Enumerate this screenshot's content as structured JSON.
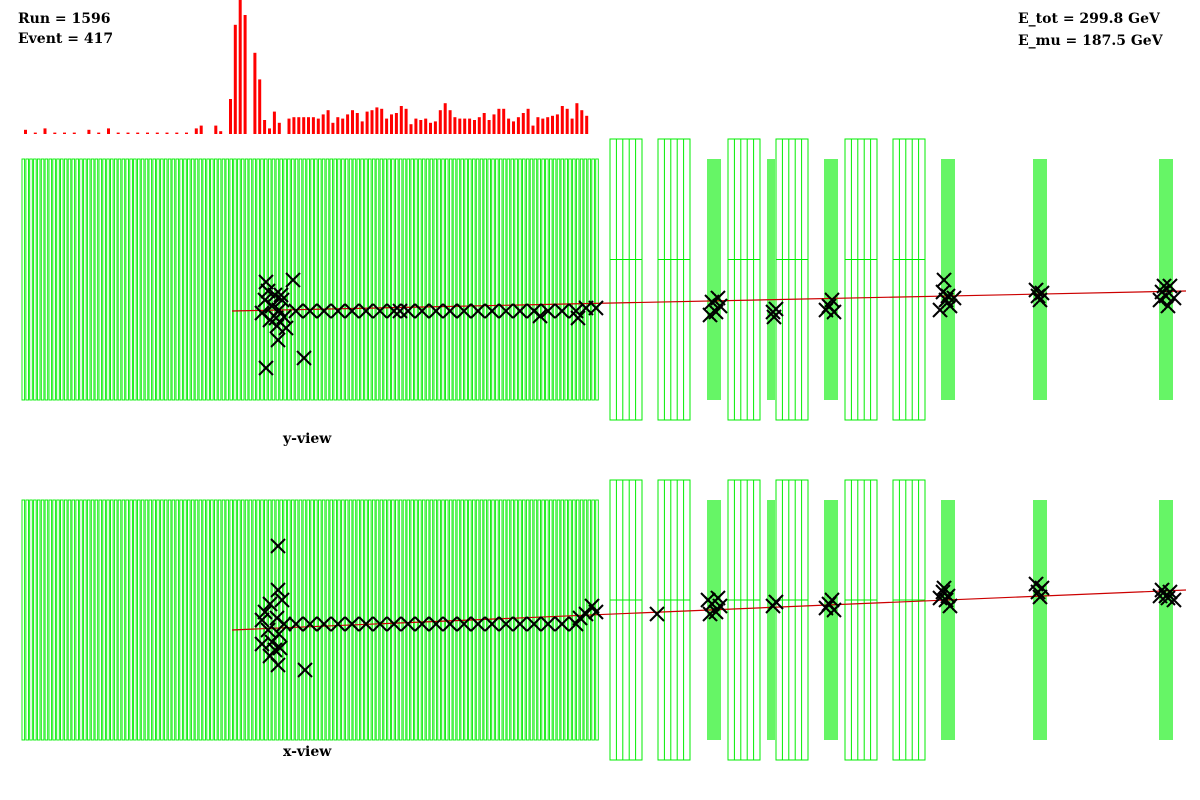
{
  "run_info": {
    "run": "Run = 1596",
    "event": "Event = 417"
  },
  "energy_info": {
    "e_tot": "E_tot = 299.8 GeV",
    "e_mu": "E_mu = 187.5 GeV"
  },
  "views": {
    "top_label": "y-view",
    "bottom_label": "x-view"
  },
  "colors": {
    "detector": "#00ee00",
    "histogram": "#ff0000",
    "track": "#cc0000",
    "hits": "#000000"
  },
  "energy_histogram": {
    "values": [
      3,
      0,
      1,
      0,
      4,
      0,
      1,
      0,
      1,
      0,
      1,
      0,
      0,
      3,
      0,
      1,
      0,
      4,
      0,
      1,
      0,
      1,
      0,
      1,
      0,
      1,
      0,
      1,
      0,
      1,
      0,
      1,
      0,
      1,
      0,
      4,
      6,
      0,
      0,
      6,
      2,
      0,
      25,
      78,
      100,
      85,
      0,
      58,
      39,
      10,
      4,
      16,
      8,
      0,
      11,
      12,
      12,
      12,
      12,
      12,
      11,
      14,
      17,
      8,
      12,
      11,
      14,
      17,
      15,
      9,
      16,
      17,
      19,
      18,
      11,
      14,
      15,
      20,
      18,
      7,
      11,
      10,
      11,
      8,
      9,
      17,
      22,
      17,
      12,
      11,
      11,
      11,
      10,
      12,
      15,
      10,
      14,
      18,
      18,
      11,
      9,
      12,
      15,
      18,
      6,
      12,
      11,
      12,
      13,
      14,
      20,
      18,
      11,
      22,
      17,
      13
    ]
  },
  "y_view_hits": [
    [
      262,
      313
    ],
    [
      265,
      300
    ],
    [
      268,
      291
    ],
    [
      270,
      320
    ],
    [
      272,
      306
    ],
    [
      275,
      295
    ],
    [
      277,
      326
    ],
    [
      279,
      310
    ],
    [
      282,
      300
    ],
    [
      284,
      317
    ],
    [
      266,
      282
    ],
    [
      293,
      280
    ],
    [
      286,
      328
    ],
    [
      278,
      340
    ],
    [
      266,
      368
    ],
    [
      304,
      358
    ],
    [
      272,
      306
    ],
    [
      276,
      318
    ],
    [
      281,
      295
    ],
    [
      296,
      311
    ],
    [
      310,
      311
    ],
    [
      324,
      311
    ],
    [
      338,
      311
    ],
    [
      352,
      311
    ],
    [
      366,
      311
    ],
    [
      380,
      311
    ],
    [
      394,
      311
    ],
    [
      408,
      311
    ],
    [
      422,
      311
    ],
    [
      436,
      311
    ],
    [
      450,
      311
    ],
    [
      464,
      311
    ],
    [
      478,
      311
    ],
    [
      492,
      311
    ],
    [
      506,
      311
    ],
    [
      520,
      311
    ],
    [
      534,
      311
    ],
    [
      548,
      311
    ],
    [
      562,
      311
    ],
    [
      576,
      311
    ],
    [
      586,
      308
    ],
    [
      596,
      308
    ],
    [
      540,
      316
    ],
    [
      578,
      318
    ],
    [
      400,
      311
    ],
    [
      712,
      302
    ],
    [
      716,
      312
    ],
    [
      710,
      315
    ],
    [
      718,
      298
    ],
    [
      720,
      306
    ],
    [
      773,
      312
    ],
    [
      774,
      317
    ],
    [
      776,
      309
    ],
    [
      829,
      306
    ],
    [
      832,
      300
    ],
    [
      826,
      310
    ],
    [
      834,
      312
    ],
    [
      943,
      292
    ],
    [
      946,
      300
    ],
    [
      944,
      280
    ],
    [
      950,
      306
    ],
    [
      940,
      310
    ],
    [
      948,
      296
    ],
    [
      954,
      298
    ],
    [
      1038,
      296
    ],
    [
      1042,
      293
    ],
    [
      1040,
      300
    ],
    [
      1036,
      290
    ],
    [
      1162,
      292
    ],
    [
      1166,
      296
    ],
    [
      1168,
      306
    ],
    [
      1170,
      286
    ],
    [
      1160,
      300
    ],
    [
      1174,
      298
    ],
    [
      1164,
      286
    ]
  ],
  "x_view_hits": [
    [
      262,
      620
    ],
    [
      265,
      612
    ],
    [
      268,
      630
    ],
    [
      270,
      604
    ],
    [
      272,
      642
    ],
    [
      275,
      650
    ],
    [
      277,
      618
    ],
    [
      279,
      634
    ],
    [
      282,
      600
    ],
    [
      284,
      624
    ],
    [
      278,
      546
    ],
    [
      278,
      590
    ],
    [
      305,
      670
    ],
    [
      278,
      665
    ],
    [
      262,
      644
    ],
    [
      270,
      656
    ],
    [
      280,
      648
    ],
    [
      296,
      624
    ],
    [
      310,
      624
    ],
    [
      324,
      624
    ],
    [
      338,
      624
    ],
    [
      352,
      624
    ],
    [
      366,
      624
    ],
    [
      380,
      624
    ],
    [
      394,
      624
    ],
    [
      408,
      624
    ],
    [
      422,
      624
    ],
    [
      436,
      624
    ],
    [
      450,
      624
    ],
    [
      464,
      624
    ],
    [
      478,
      624
    ],
    [
      492,
      624
    ],
    [
      506,
      624
    ],
    [
      520,
      624
    ],
    [
      534,
      624
    ],
    [
      548,
      624
    ],
    [
      562,
      624
    ],
    [
      576,
      624
    ],
    [
      586,
      614
    ],
    [
      592,
      606
    ],
    [
      596,
      612
    ],
    [
      580,
      618
    ],
    [
      657,
      614
    ],
    [
      712,
      604
    ],
    [
      716,
      612
    ],
    [
      710,
      614
    ],
    [
      718,
      598
    ],
    [
      720,
      606
    ],
    [
      708,
      600
    ],
    [
      773,
      606
    ],
    [
      776,
      602
    ],
    [
      829,
      604
    ],
    [
      832,
      600
    ],
    [
      826,
      608
    ],
    [
      834,
      610
    ],
    [
      943,
      592
    ],
    [
      946,
      600
    ],
    [
      944,
      588
    ],
    [
      950,
      606
    ],
    [
      940,
      598
    ],
    [
      948,
      596
    ],
    [
      1038,
      592
    ],
    [
      1042,
      588
    ],
    [
      1040,
      597
    ],
    [
      1036,
      584
    ],
    [
      1162,
      590
    ],
    [
      1166,
      596
    ],
    [
      1168,
      598
    ],
    [
      1170,
      592
    ],
    [
      1160,
      596
    ],
    [
      1174,
      600
    ]
  ]
}
